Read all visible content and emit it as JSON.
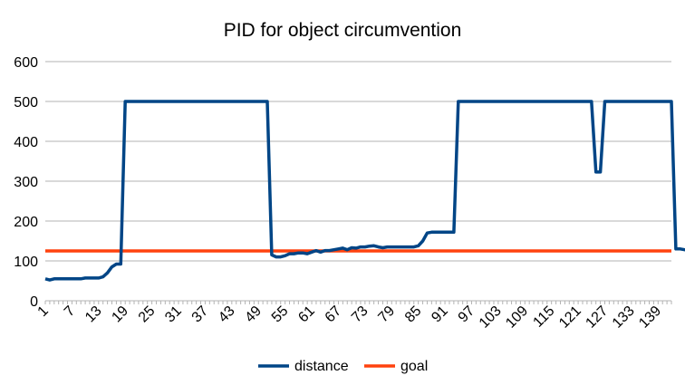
{
  "chart_data": {
    "type": "line",
    "title": "PID for object circumvention",
    "xlabel": "",
    "ylabel": "",
    "x_start": 1,
    "x_end": 142,
    "x_tick_labels": [
      "1",
      "7",
      "13",
      "19",
      "25",
      "31",
      "37",
      "43",
      "49",
      "55",
      "61",
      "67",
      "73",
      "79",
      "85",
      "91",
      "97",
      "103",
      "109",
      "115",
      "121",
      "127",
      "133",
      "139"
    ],
    "y_ticks": [
      0,
      100,
      200,
      300,
      400,
      500,
      600
    ],
    "ylim": [
      0,
      600
    ],
    "grid": "horizontal",
    "legend": "bottom",
    "series": [
      {
        "name": "distance",
        "color": "#004586",
        "values": [
          55,
          52,
          55,
          55,
          55,
          55,
          55,
          55,
          55,
          57,
          57,
          57,
          57,
          60,
          70,
          85,
          92,
          92,
          500,
          500,
          500,
          500,
          500,
          500,
          500,
          500,
          500,
          500,
          500,
          500,
          500,
          500,
          500,
          500,
          500,
          500,
          500,
          500,
          500,
          500,
          500,
          500,
          500,
          500,
          500,
          500,
          500,
          500,
          500,
          500,
          500,
          115,
          110,
          110,
          113,
          118,
          118,
          120,
          120,
          118,
          122,
          126,
          122,
          126,
          126,
          128,
          130,
          132,
          128,
          133,
          132,
          135,
          135,
          137,
          138,
          135,
          133,
          135,
          135,
          135,
          135,
          135,
          135,
          135,
          138,
          150,
          170,
          172,
          172,
          172,
          172,
          172,
          172,
          500,
          500,
          500,
          500,
          500,
          500,
          500,
          500,
          500,
          500,
          500,
          500,
          500,
          500,
          500,
          500,
          500,
          500,
          500,
          500,
          500,
          500,
          500,
          500,
          500,
          500,
          500,
          500,
          500,
          500,
          500,
          323,
          323,
          500,
          500,
          500,
          500,
          500,
          500,
          500,
          500,
          500,
          500,
          500,
          500,
          500,
          500,
          500,
          500,
          130,
          130,
          128,
          128,
          128,
          128,
          128,
          128,
          128,
          128,
          128,
          128,
          125,
          120,
          120
        ]
      },
      {
        "name": "goal",
        "color": "#ff420e",
        "value": 125
      }
    ]
  }
}
